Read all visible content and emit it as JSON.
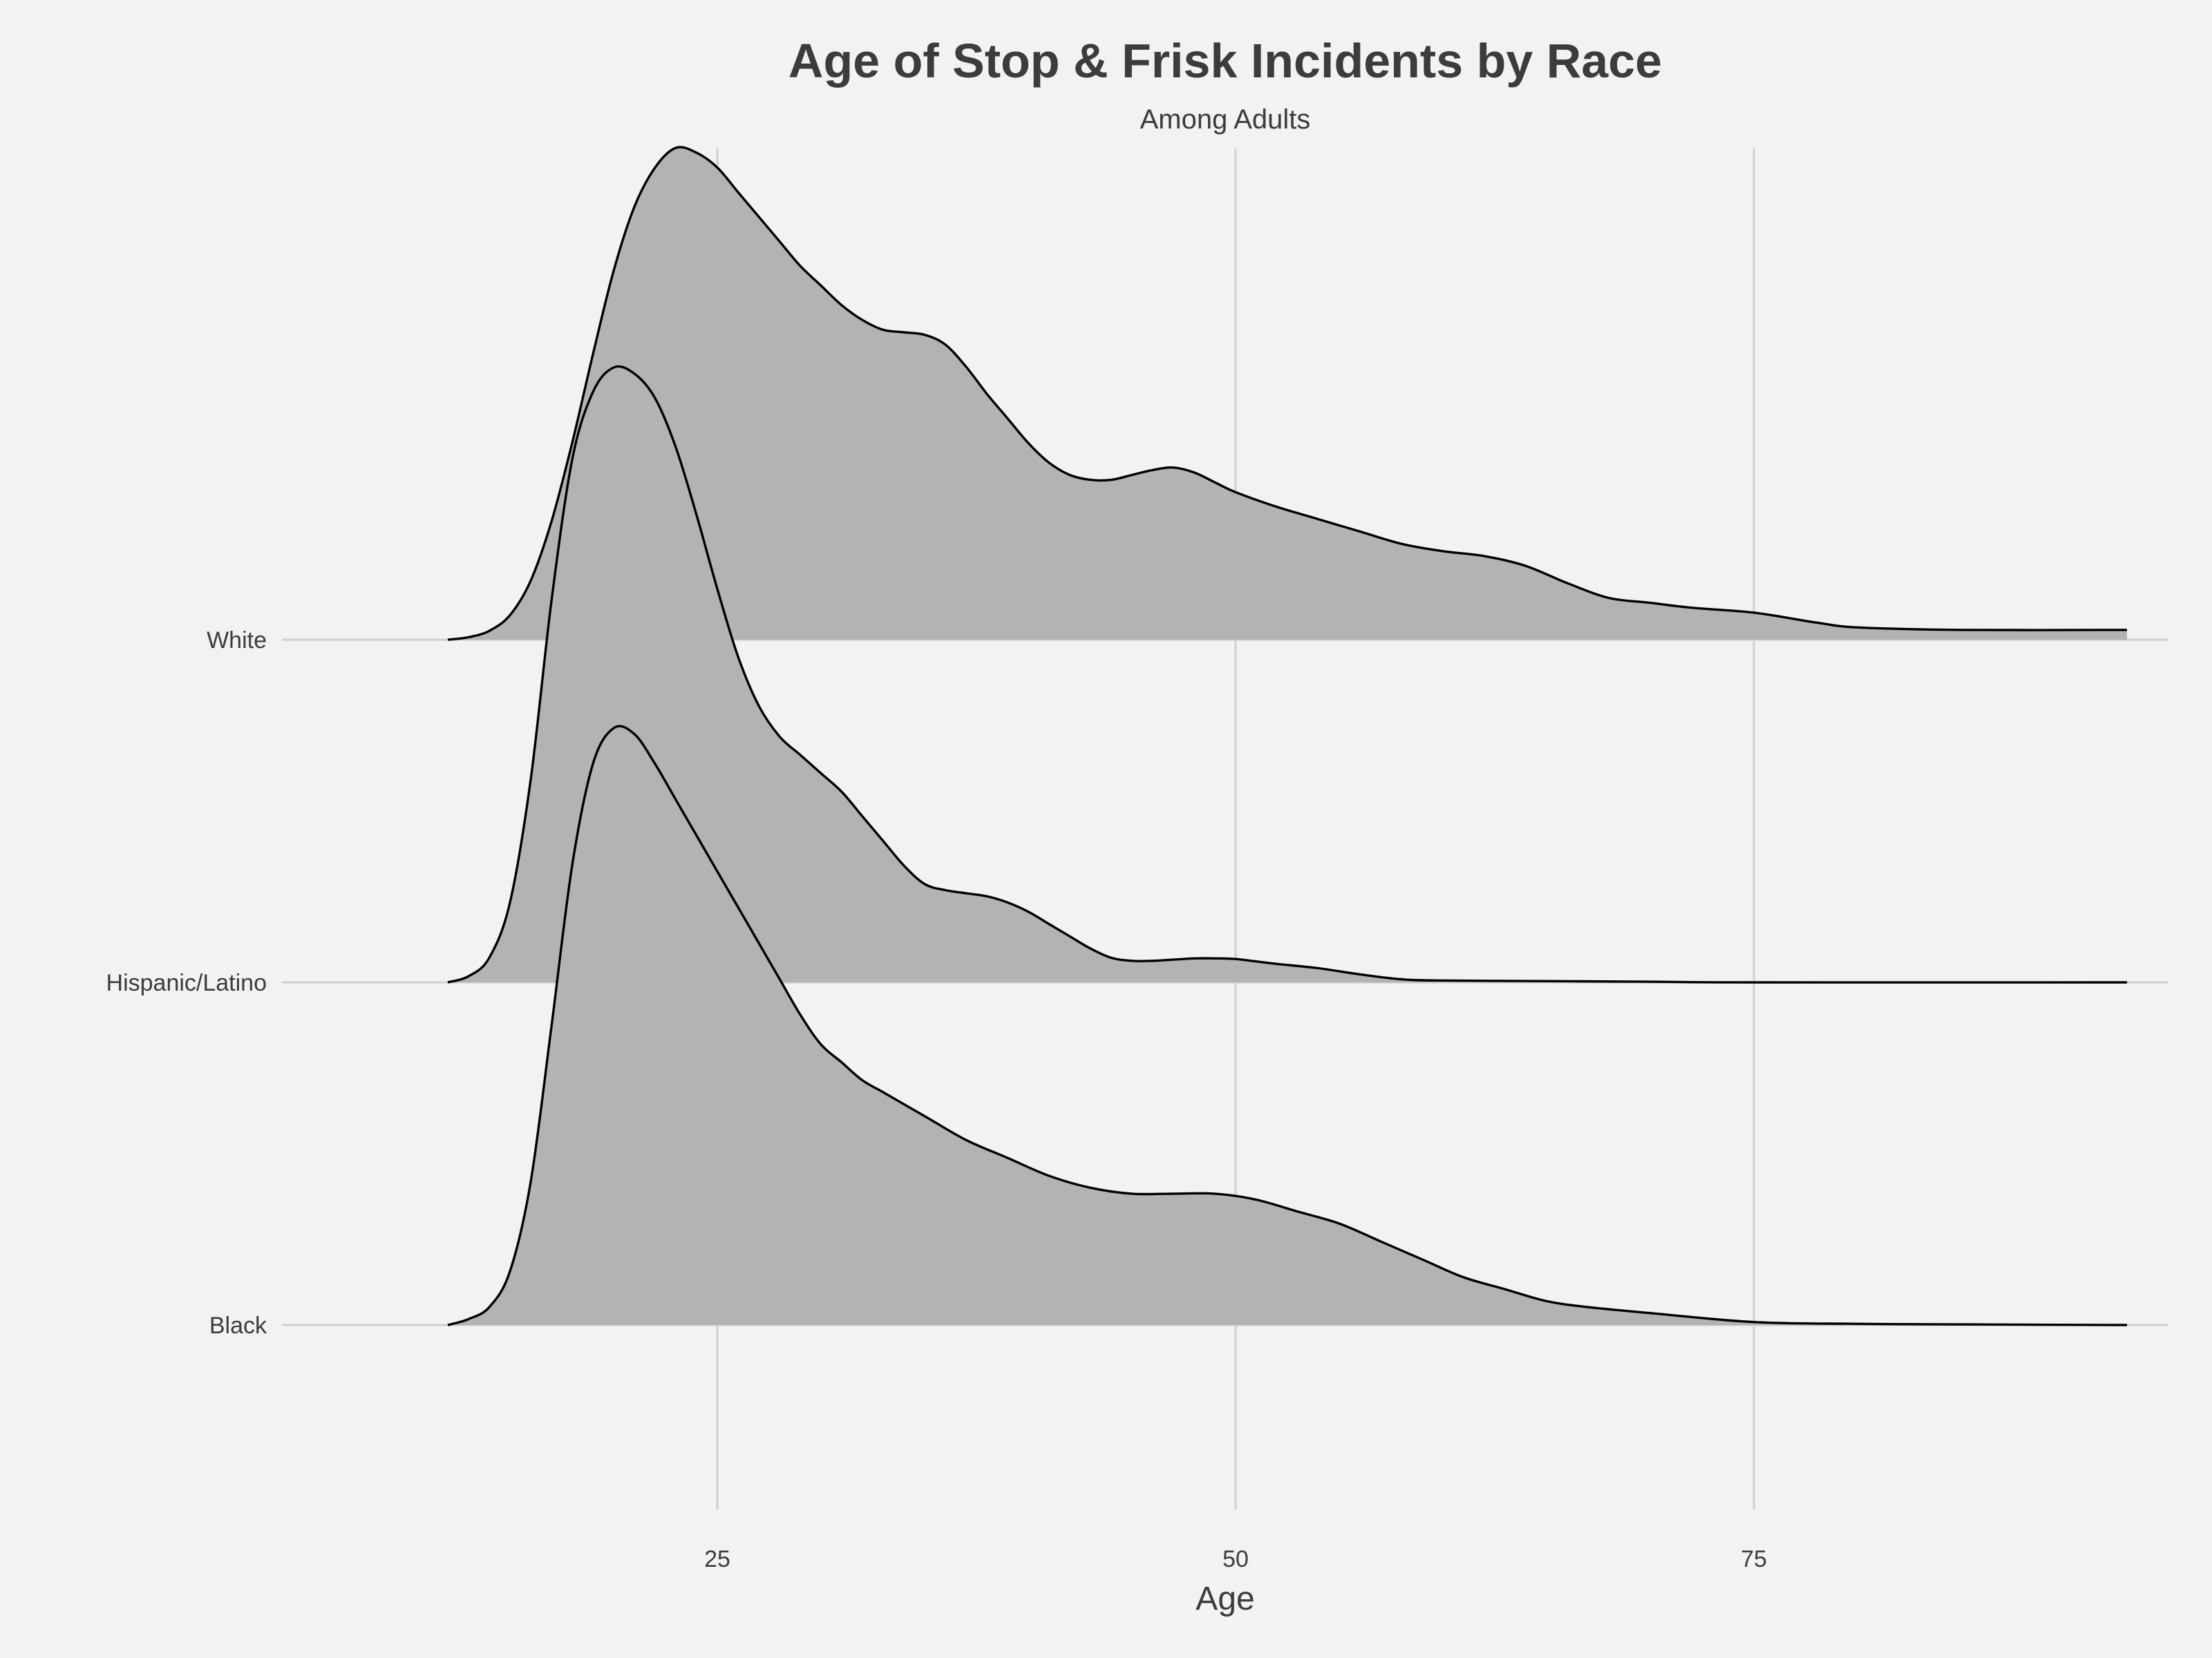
{
  "chart_data": {
    "type": "ridgeline",
    "title": "Age of Stop & Frisk Incidents by Race",
    "subtitle": "Among Adults",
    "xlabel": "Age",
    "ylabel": "",
    "xlim": [
      4,
      95
    ],
    "x_ticks": [
      25,
      50,
      75
    ],
    "grid": true,
    "fill_color": "#b3b3b3",
    "line_color": "#000000",
    "background_color": "#f2f2f2",
    "grid_color": "#cfcfcf",
    "series": [
      {
        "name": "Black",
        "points": [
          [
            12,
            0
          ],
          [
            13,
            0.01
          ],
          [
            14,
            0.03
          ],
          [
            15,
            0.09
          ],
          [
            16,
            0.24
          ],
          [
            17,
            0.5
          ],
          [
            18,
            0.77
          ],
          [
            19,
            0.94
          ],
          [
            20,
            1.0
          ],
          [
            21,
            0.99
          ],
          [
            22,
            0.94
          ],
          [
            23,
            0.88
          ],
          [
            24,
            0.82
          ],
          [
            25,
            0.76
          ],
          [
            26,
            0.7
          ],
          [
            27,
            0.64
          ],
          [
            28,
            0.58
          ],
          [
            29,
            0.52
          ],
          [
            30,
            0.47
          ],
          [
            31,
            0.44
          ],
          [
            32,
            0.41
          ],
          [
            33,
            0.39
          ],
          [
            35,
            0.35
          ],
          [
            37,
            0.31
          ],
          [
            39,
            0.28
          ],
          [
            41,
            0.25
          ],
          [
            43,
            0.23
          ],
          [
            45,
            0.22
          ],
          [
            47,
            0.22
          ],
          [
            49,
            0.22
          ],
          [
            51,
            0.21
          ],
          [
            53,
            0.19
          ],
          [
            55,
            0.17
          ],
          [
            57,
            0.14
          ],
          [
            59,
            0.11
          ],
          [
            61,
            0.08
          ],
          [
            63,
            0.06
          ],
          [
            65,
            0.04
          ],
          [
            67,
            0.03
          ],
          [
            70,
            0.02
          ],
          [
            75,
            0.005
          ],
          [
            80,
            0.002
          ],
          [
            85,
            0.001
          ],
          [
            93,
            0
          ]
        ]
      },
      {
        "name": "Hispanic/Latino",
        "points": [
          [
            12,
            0
          ],
          [
            13,
            0.01
          ],
          [
            14,
            0.04
          ],
          [
            15,
            0.13
          ],
          [
            16,
            0.33
          ],
          [
            17,
            0.62
          ],
          [
            18,
            0.85
          ],
          [
            19,
            0.96
          ],
          [
            20,
            1.0
          ],
          [
            21,
            0.99
          ],
          [
            22,
            0.95
          ],
          [
            23,
            0.87
          ],
          [
            24,
            0.76
          ],
          [
            25,
            0.64
          ],
          [
            26,
            0.53
          ],
          [
            27,
            0.45
          ],
          [
            28,
            0.4
          ],
          [
            29,
            0.37
          ],
          [
            30,
            0.34
          ],
          [
            31,
            0.31
          ],
          [
            32,
            0.27
          ],
          [
            33,
            0.23
          ],
          [
            34,
            0.19
          ],
          [
            35,
            0.16
          ],
          [
            36,
            0.15
          ],
          [
            37,
            0.145
          ],
          [
            38,
            0.14
          ],
          [
            39,
            0.13
          ],
          [
            40,
            0.115
          ],
          [
            41,
            0.095
          ],
          [
            42,
            0.075
          ],
          [
            43,
            0.055
          ],
          [
            44,
            0.04
          ],
          [
            45,
            0.035
          ],
          [
            46,
            0.035
          ],
          [
            47,
            0.037
          ],
          [
            48,
            0.039
          ],
          [
            49,
            0.039
          ],
          [
            50,
            0.038
          ],
          [
            51,
            0.034
          ],
          [
            52,
            0.03
          ],
          [
            54,
            0.023
          ],
          [
            56,
            0.013
          ],
          [
            58,
            0.005
          ],
          [
            60,
            0.003
          ],
          [
            65,
            0.002
          ],
          [
            70,
            0.001
          ],
          [
            75,
            0
          ],
          [
            93,
            0
          ]
        ]
      },
      {
        "name": "White",
        "points": [
          [
            12,
            0
          ],
          [
            13,
            0.005
          ],
          [
            14,
            0.018
          ],
          [
            15,
            0.05
          ],
          [
            16,
            0.12
          ],
          [
            17,
            0.24
          ],
          [
            18,
            0.4
          ],
          [
            19,
            0.58
          ],
          [
            20,
            0.75
          ],
          [
            21,
            0.88
          ],
          [
            22,
            0.96
          ],
          [
            23,
            1.0
          ],
          [
            24,
            0.99
          ],
          [
            25,
            0.96
          ],
          [
            26,
            0.91
          ],
          [
            27,
            0.86
          ],
          [
            28,
            0.81
          ],
          [
            29,
            0.76
          ],
          [
            30,
            0.72
          ],
          [
            31,
            0.68
          ],
          [
            32,
            0.65
          ],
          [
            33,
            0.63
          ],
          [
            34,
            0.625
          ],
          [
            35,
            0.62
          ],
          [
            36,
            0.6
          ],
          [
            37,
            0.555
          ],
          [
            38,
            0.5
          ],
          [
            39,
            0.45
          ],
          [
            40,
            0.4
          ],
          [
            41,
            0.36
          ],
          [
            42,
            0.335
          ],
          [
            43,
            0.325
          ],
          [
            44,
            0.325
          ],
          [
            45,
            0.335
          ],
          [
            46,
            0.345
          ],
          [
            47,
            0.35
          ],
          [
            48,
            0.34
          ],
          [
            49,
            0.32
          ],
          [
            50,
            0.3
          ],
          [
            52,
            0.27
          ],
          [
            54,
            0.245
          ],
          [
            56,
            0.22
          ],
          [
            58,
            0.195
          ],
          [
            60,
            0.18
          ],
          [
            62,
            0.17
          ],
          [
            64,
            0.15
          ],
          [
            66,
            0.115
          ],
          [
            68,
            0.085
          ],
          [
            70,
            0.075
          ],
          [
            72,
            0.065
          ],
          [
            75,
            0.055
          ],
          [
            78,
            0.035
          ],
          [
            80,
            0.025
          ],
          [
            85,
            0.02
          ],
          [
            93,
            0.02
          ]
        ]
      }
    ]
  }
}
